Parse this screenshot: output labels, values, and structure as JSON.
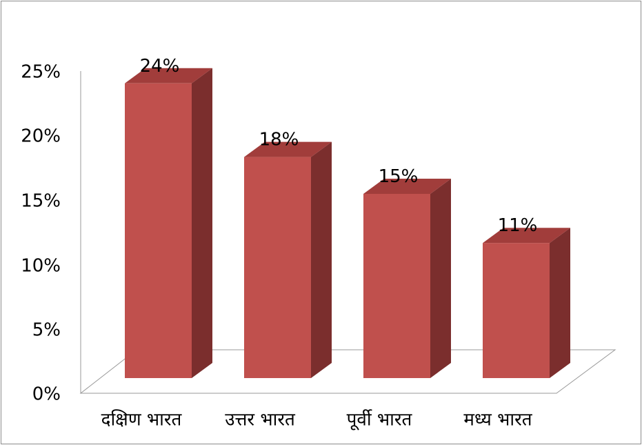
{
  "chart_data": {
    "type": "bar",
    "style": "3d-column",
    "categories": [
      "दक्षिण भारत",
      "उत्तर भारत",
      "पूर्वी भारत",
      "मध्य भारत"
    ],
    "values": [
      24,
      18,
      15,
      11
    ],
    "data_labels": [
      "24%",
      "18%",
      "15%",
      "11%"
    ],
    "y_ticks": [
      "0%",
      "5%",
      "10%",
      "15%",
      "20%",
      "25%"
    ],
    "ylim": [
      0,
      25
    ],
    "value_unit": "%",
    "grid": false,
    "legend": "none",
    "colors": {
      "bar_front": "#C0504D",
      "bar_side": "#7B2E2D",
      "bar_top": "#A13D3B",
      "axis": "#999999",
      "border": "#8c8c8c"
    }
  }
}
